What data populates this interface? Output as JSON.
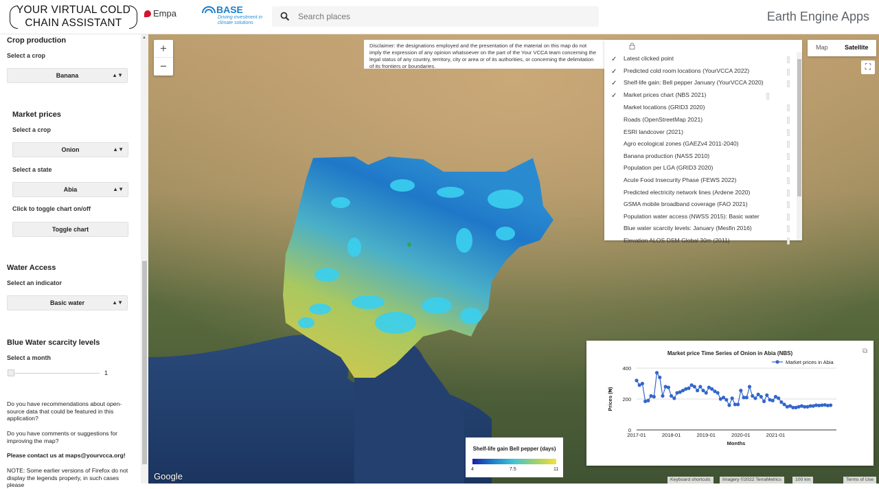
{
  "header": {
    "title_line1": "YOUR VIRTUAL COLD",
    "title_line2": "CHAIN ASSISTANT",
    "empa": "Empa",
    "base": "BASE",
    "base_sub1": "Driving investment in",
    "base_sub2": "climate solutions",
    "search_placeholder": "Search places",
    "ee_apps": "Earth Engine Apps"
  },
  "sidebar": {
    "crop_production": {
      "heading": "Crop production",
      "label": "Select a crop",
      "value": "Banana"
    },
    "market_prices": {
      "heading": "Market prices",
      "crop_label": "Select a crop",
      "crop_value": "Onion",
      "state_label": "Select a state",
      "state_value": "Abia",
      "toggle_label": "Click to toggle chart on/off",
      "toggle_button": "Toggle chart"
    },
    "water_access": {
      "heading": "Water Access",
      "label": "Select an indicator",
      "value": "Basic water"
    },
    "blue_water": {
      "heading": "Blue Water scarcity levels",
      "label": "Select a month",
      "value": "1"
    },
    "note1": "Do you have recommendations about open-source data that could be featured in this application?",
    "note2": "Do you have comments or suggestions for improving the map?",
    "contact": "Please contact us at maps@yourvcca.org!",
    "note3": "NOTE: Some earlier versions of Firefox do not display the legends properly, in such cases please"
  },
  "map": {
    "zoom_in": "+",
    "zoom_out": "−",
    "disclaimer": "Disclaimer: the designations employed and the presentation of the material on this map do not imply the expression of any opinion whatsoever on the part of the Your VCCA team concerning the legal status of any country, territory, city or area or of its authorities, or concerning the delimitation of its frontiers or boundaries.",
    "maptype_map": "Map",
    "maptype_satellite": "Satellite",
    "layers": [
      {
        "label": "Latest clicked point",
        "checked": true
      },
      {
        "label": "Predicted cold room locations (YourVCCA 2022)",
        "checked": true
      },
      {
        "label": "Shelf-life gain: Bell pepper January (YourVCCA 2020)",
        "checked": true
      },
      {
        "label": "Market prices chart (NBS 2021)",
        "checked": true
      },
      {
        "label": "Market locations (GRID3 2020)",
        "checked": false
      },
      {
        "label": "Roads (OpenStreetMap 2021)",
        "checked": false
      },
      {
        "label": "ESRI landcover (2021)",
        "checked": false
      },
      {
        "label": "Agro ecological zones (GAEZv4 2011-2040)",
        "checked": false
      },
      {
        "label": "Banana production (NASS 2010)",
        "checked": false
      },
      {
        "label": "Population per LGA (GRID3 2020)",
        "checked": false
      },
      {
        "label": "Acute Food Insecurity Phase (FEWS 2022)",
        "checked": false
      },
      {
        "label": "Predicted electricity network lines (Ardene 2020)",
        "checked": false
      },
      {
        "label": "GSMA mobile broadband coverage (FAO 2021)",
        "checked": false
      },
      {
        "label": "Population water access (NWSS 2015): Basic water",
        "checked": false
      },
      {
        "label": "Blue water scarcity levels: January (Mesfin 2016)",
        "checked": false
      },
      {
        "label": "Elevation ALOS DSM Global 30m (2011)",
        "checked": false
      }
    ],
    "legend": {
      "title": "Shelf-life gain Bell pepper (days)",
      "min": "4",
      "mid": "7.5",
      "max": "11"
    },
    "google": "Google",
    "attrib_keyboard": "Keyboard shortcuts",
    "attrib_imagery": "Imagery ©2022 TerraMetrics",
    "attrib_scale": "100 km",
    "attrib_terms": "Terms of Use"
  },
  "chart_data": {
    "type": "line",
    "title": "Market price Time Series of Onion in Abia (NBS)",
    "xlabel": "Months",
    "ylabel": "Prices (₦)",
    "legend": "Market prices in Abia",
    "legend_position": "top-right",
    "color": "#3366cc",
    "x_ticks": [
      "2017-01",
      "2018-01",
      "2019-01",
      "2020-01",
      "2021-01"
    ],
    "y_ticks": [
      0,
      200,
      400
    ],
    "ylim": [
      0,
      400
    ],
    "xlim": [
      0,
      69
    ],
    "x": [
      0,
      1,
      2,
      3,
      4,
      5,
      6,
      7,
      8,
      9,
      10,
      11,
      12,
      13,
      14,
      15,
      16,
      17,
      18,
      19,
      20,
      21,
      22,
      23,
      24,
      25,
      26,
      27,
      28,
      29,
      30,
      31,
      32,
      33,
      34,
      35,
      36,
      37,
      38,
      39,
      40,
      41,
      42,
      43,
      44,
      45,
      46,
      47,
      48,
      49,
      50,
      51,
      52,
      53,
      54,
      55,
      56,
      57,
      58,
      59,
      60,
      61,
      62,
      63,
      64,
      65,
      66,
      67
    ],
    "values": [
      320,
      290,
      300,
      185,
      190,
      220,
      215,
      370,
      340,
      220,
      280,
      275,
      220,
      205,
      240,
      245,
      255,
      265,
      270,
      290,
      280,
      255,
      280,
      255,
      240,
      275,
      265,
      250,
      240,
      200,
      210,
      195,
      160,
      205,
      165,
      165,
      255,
      210,
      210,
      280,
      220,
      205,
      230,
      215,
      185,
      225,
      195,
      190,
      215,
      205,
      180,
      165,
      150,
      155,
      145,
      145,
      150,
      155,
      150,
      150,
      155,
      155,
      160,
      158,
      160,
      162,
      158,
      160
    ]
  }
}
